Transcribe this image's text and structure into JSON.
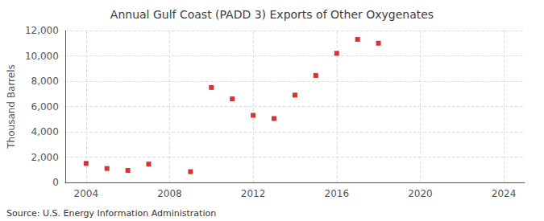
{
  "chart_data": {
    "type": "scatter",
    "title": "Annual Gulf Coast (PADD 3) Exports of Other Oxygenates",
    "ylabel": "Thousand Barrels",
    "annotations": [
      "Source: U.S. Energy Information Administration"
    ],
    "x": [
      2004,
      2005,
      2006,
      2007,
      2009,
      2010,
      2011,
      2012,
      2013,
      2014,
      2015,
      2016,
      2017,
      2018
    ],
    "values": [
      1500,
      1100,
      950,
      1450,
      850,
      7500,
      6600,
      5300,
      5050,
      6900,
      8450,
      10200,
      11300,
      11000
    ],
    "color": "#cc0000",
    "marker": "square",
    "xlim": [
      2003,
      2025
    ],
    "ylim": [
      0,
      12000
    ],
    "xticks": [
      2004,
      2008,
      2012,
      2016,
      2020,
      2024
    ],
    "yticks": [
      0,
      {
        "value": 2000,
        "label": "2,000"
      },
      {
        "value": 4000,
        "label": "4,000"
      },
      {
        "value": 6000,
        "label": "6,000"
      },
      {
        "value": 8000,
        "label": "8,000"
      },
      {
        "value": 10000,
        "label": "10,000"
      },
      {
        "value": 12000,
        "label": "12,000"
      }
    ],
    "grid": true
  }
}
